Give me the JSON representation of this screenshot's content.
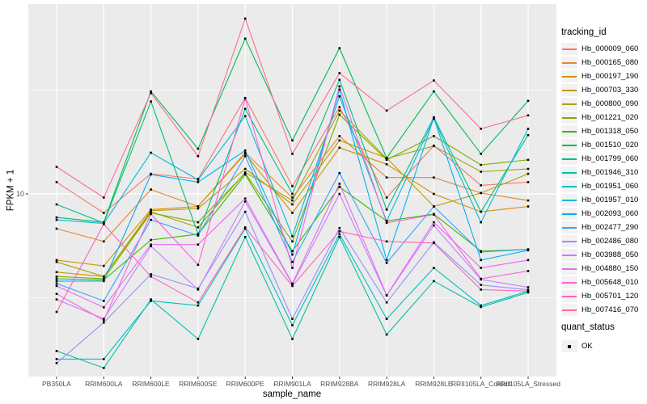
{
  "colors": {
    "page_background": "#FFFFFF",
    "panel_background": "#EBEBEB",
    "grid": "#FFFFFF",
    "axis_text": "#4D4D4D",
    "point": "#000000"
  },
  "axes": {
    "x_title": "sample_name",
    "y_title": "FPKM + 1",
    "y_tick_labels": [
      "10"
    ]
  },
  "legend": {
    "tracking_title": "tracking_id",
    "quant_title": "quant_status",
    "quant_items": [
      {
        "label": "OK",
        "marker": "black-square"
      }
    ]
  },
  "chart_data": {
    "type": "line",
    "title": "",
    "xlabel": "sample_name",
    "ylabel": "FPKM + 1",
    "y_scale": "log10",
    "y_ticks": [
      10
    ],
    "y_minor_ticks": [
      3.162,
      31.62
    ],
    "ylim": [
      1.3,
      82
    ],
    "grid": true,
    "legend_position": "right",
    "point_shape": "square",
    "point_color": "#000000",
    "categories": [
      "PB350LA",
      "RRIM600LA",
      "RRIM600LE",
      "RRIM600SE",
      "RRIM600PE",
      "RRIM901LA",
      "RRIM928BA",
      "RRIM928LA",
      "RRIM928LE",
      "RRII105LA_Control",
      "RRII105LA_Stressed"
    ],
    "series": [
      {
        "name": "Hb_000009_060",
        "color": "#F8766D",
        "values": [
          11.4,
          8.1,
          12.5,
          11.8,
          29.0,
          10.9,
          26.2,
          9.6,
          17.1,
          11.0,
          11.4
        ]
      },
      {
        "name": "Hb_000165_080",
        "color": "#EA8331",
        "values": [
          6.8,
          5.9,
          10.5,
          8.7,
          15.8,
          9.6,
          19.0,
          12.0,
          12.0,
          10.1,
          9.3
        ]
      },
      {
        "name": "Hb_000197_190",
        "color": "#D89000",
        "values": [
          4.8,
          4.5,
          8.4,
          8.7,
          15.6,
          8.1,
          16.7,
          13.9,
          10.0,
          8.2,
          8.7
        ]
      },
      {
        "name": "Hb_000703_330",
        "color": "#C09B00",
        "values": [
          4.2,
          4.0,
          8.3,
          8.5,
          13.2,
          8.9,
          18.1,
          14.9,
          8.7,
          10.1,
          12.5
        ]
      },
      {
        "name": "Hb_000800_090",
        "color": "#A3A500",
        "values": [
          4.7,
          4.0,
          8.2,
          6.9,
          12.7,
          9.3,
          25.2,
          14.8,
          17.0,
          12.8,
          13.2
        ]
      },
      {
        "name": "Hb_001221_020",
        "color": "#7CAE00",
        "values": [
          4.0,
          3.9,
          8.1,
          7.3,
          12.6,
          5.9,
          24.1,
          14.6,
          19.0,
          13.8,
          14.6
        ]
      },
      {
        "name": "Hb_001318_050",
        "color": "#39B600",
        "values": [
          3.9,
          3.85,
          6.0,
          6.4,
          12.4,
          5.3,
          10.8,
          7.4,
          8.0,
          5.3,
          5.4
        ]
      },
      {
        "name": "Hb_001510_020",
        "color": "#00BB4E",
        "values": [
          7.7,
          7.3,
          31.2,
          16.5,
          56.0,
          18.1,
          50.4,
          14.9,
          31.2,
          15.6,
          28.1
        ]
      },
      {
        "name": "Hb_001799_060",
        "color": "#00BF7D",
        "values": [
          8.9,
          7.25,
          27.9,
          6.4,
          25.7,
          10.0,
          35.5,
          8.4,
          23.4,
          8.2,
          19.2
        ]
      },
      {
        "name": "Hb_001946_310",
        "color": "#00C1A3",
        "values": [
          1.75,
          1.45,
          3.1,
          2.0,
          6.2,
          2.0,
          6.2,
          2.1,
          3.8,
          2.85,
          3.35
        ]
      },
      {
        "name": "Hb_001951_060",
        "color": "#00BFC4",
        "values": [
          1.6,
          1.6,
          3.05,
          2.9,
          6.8,
          2.33,
          6.4,
          2.5,
          4.4,
          2.9,
          3.4
        ]
      },
      {
        "name": "Hb_001957_010",
        "color": "#00BAE0",
        "values": [
          7.5,
          7.2,
          15.8,
          11.7,
          23.7,
          6.25,
          29.5,
          7.4,
          23.0,
          7.3,
          20.6
        ]
      },
      {
        "name": "Hb_002093_060",
        "color": "#00B0F6",
        "values": [
          3.8,
          3.8,
          12.4,
          11.4,
          16.2,
          5.1,
          31.8,
          4.8,
          23.3,
          4.8,
          5.35
        ]
      },
      {
        "name": "Hb_002477_290",
        "color": "#35A2FF",
        "values": [
          3.7,
          3.05,
          7.5,
          6.3,
          15.2,
          4.7,
          12.6,
          4.65,
          8.7,
          5.25,
          5.4
        ]
      },
      {
        "name": "Hb_002486_080",
        "color": "#9590FF",
        "values": [
          1.53,
          2.4,
          4.1,
          3.5,
          8.2,
          2.5,
          6.85,
          3.0,
          5.85,
          3.64,
          3.45
        ]
      },
      {
        "name": "Hb_003988_050",
        "color": "#C77CFF",
        "values": [
          3.1,
          2.5,
          5.6,
          3.46,
          9.2,
          3.67,
          10.0,
          3.24,
          7.05,
          3.87,
          3.55
        ]
      },
      {
        "name": "Hb_004880_150",
        "color": "#E76BF3",
        "values": [
          3.6,
          2.84,
          5.7,
          5.7,
          9.5,
          3.7,
          11.2,
          3.25,
          7.3,
          4.4,
          4.8
        ]
      },
      {
        "name": "Hb_005648_010",
        "color": "#FA62DB",
        "values": [
          3.3,
          2.46,
          8.0,
          4.55,
          28.8,
          4.4,
          33.0,
          7.25,
          7.95,
          3.9,
          4.25
        ]
      },
      {
        "name": "Hb_005701_120",
        "color": "#FF62BC",
        "values": [
          2.7,
          7.15,
          4.0,
          3.0,
          6.9,
          3.6,
          6.6,
          5.9,
          5.8,
          3.46,
          3.4
        ]
      },
      {
        "name": "Hb_007416_070",
        "color": "#FF6A98",
        "values": [
          13.5,
          9.6,
          30.6,
          15.2,
          70.0,
          15.6,
          38.2,
          25.2,
          35.2,
          20.6,
          23.9
        ]
      }
    ]
  }
}
